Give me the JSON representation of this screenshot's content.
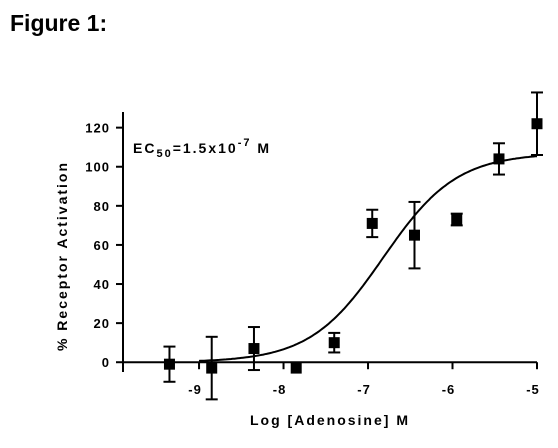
{
  "figure_title": "Figure 1:",
  "chart_data": {
    "type": "scatter",
    "xlabel": "Log [Adenosine] M",
    "ylabel": "% Receptor Activation",
    "xlim": [
      -9.9,
      -5
    ],
    "ylim": [
      -5,
      128
    ],
    "xticks": [
      -9,
      -8,
      -7,
      -6,
      -5
    ],
    "yticks": [
      0,
      20,
      40,
      60,
      80,
      100,
      120
    ],
    "annotation": {
      "prefix": "EC",
      "sub": "50",
      "mid": "=1.5x10",
      "sup": "-7",
      "suffix": " M"
    },
    "points": [
      {
        "x": -9.35,
        "y": -1,
        "err": 9
      },
      {
        "x": -8.85,
        "y": -3,
        "err": 16
      },
      {
        "x": -8.35,
        "y": 7,
        "err": 11
      },
      {
        "x": -7.85,
        "y": -3,
        "err": 0
      },
      {
        "x": -7.4,
        "y": 10,
        "err": 5
      },
      {
        "x": -6.95,
        "y": 71,
        "err": 7
      },
      {
        "x": -6.45,
        "y": 65,
        "err": 17
      },
      {
        "x": -5.95,
        "y": 73,
        "err": 3
      },
      {
        "x": -5.45,
        "y": 104,
        "err": 8
      },
      {
        "x": -5.0,
        "y": 122,
        "err": 16
      }
    ],
    "fit": {
      "bottom": 0,
      "top": 107,
      "logEC50": -6.82,
      "hill": 1.0
    }
  }
}
